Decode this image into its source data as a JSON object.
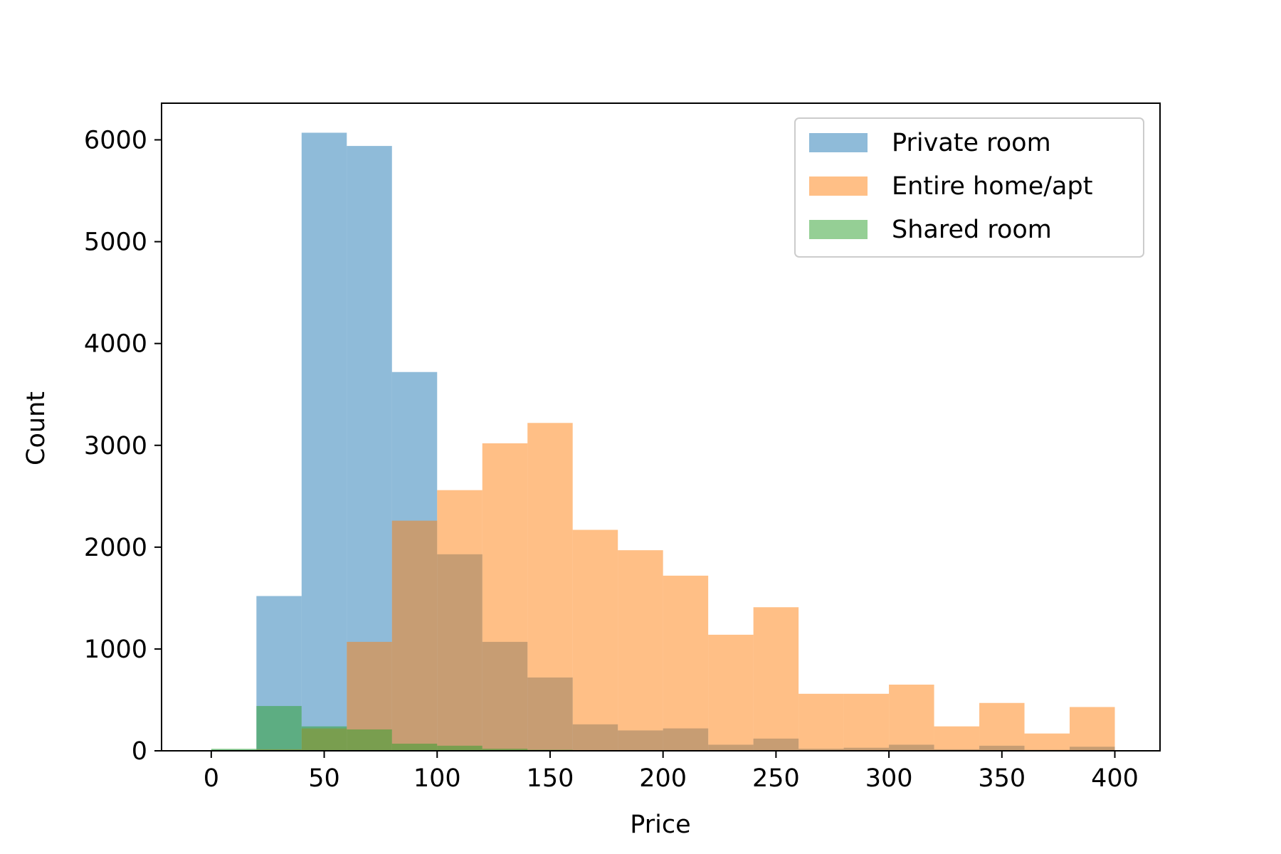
{
  "chart_data": {
    "type": "bar",
    "subtype": "overlapping-histogram",
    "title": "",
    "xlabel": "Price",
    "ylabel": "Count",
    "xlim": [
      -22,
      420
    ],
    "ylim": [
      0,
      6360
    ],
    "grid": false,
    "legend_position": "top-right",
    "bin_edges": [
      0,
      20,
      40,
      60,
      80,
      100,
      120,
      140,
      160,
      180,
      200,
      220,
      240,
      260,
      280,
      300,
      320,
      340,
      360,
      380,
      400
    ],
    "x_ticks": [
      "0",
      "50",
      "100",
      "150",
      "200",
      "250",
      "300",
      "350",
      "400"
    ],
    "y_ticks": [
      "0",
      "1000",
      "2000",
      "3000",
      "4000",
      "5000",
      "6000"
    ],
    "series": [
      {
        "name": "Private room",
        "color": "#1f77b4",
        "values": [
          10,
          1520,
          6070,
          5940,
          3720,
          1930,
          1070,
          720,
          260,
          200,
          220,
          60,
          120,
          20,
          30,
          60,
          15,
          50,
          10,
          40
        ]
      },
      {
        "name": "Entire home/apt",
        "color": "#ff7f0e",
        "values": [
          5,
          15,
          220,
          1070,
          2260,
          2560,
          3020,
          3220,
          2170,
          1970,
          1720,
          1140,
          1410,
          560,
          560,
          650,
          240,
          470,
          170,
          430
        ]
      },
      {
        "name": "Shared room",
        "color": "#2ca02c",
        "values": [
          20,
          440,
          240,
          210,
          70,
          50,
          20,
          10,
          5,
          5,
          5,
          3,
          3,
          2,
          2,
          2,
          1,
          1,
          1,
          1
        ]
      }
    ]
  }
}
